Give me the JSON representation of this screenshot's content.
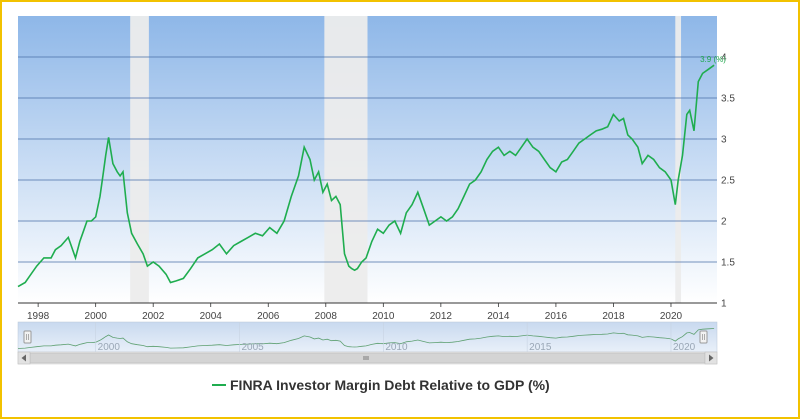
{
  "chart_data": {
    "type": "line",
    "title": "",
    "xlabel": "",
    "ylabel": "",
    "ylim": [
      1,
      4.5
    ],
    "xlim": [
      1997.3,
      2021.6
    ],
    "y_ticks": [
      "1",
      "1.5",
      "2",
      "2.5",
      "3",
      "3.5",
      "4"
    ],
    "x_ticks": [
      "1998",
      "2000",
      "2002",
      "2004",
      "2006",
      "2008",
      "2010",
      "2012",
      "2014",
      "2016",
      "2018",
      "2020"
    ],
    "navigator_ticks": [
      "2000",
      "2005",
      "2010",
      "2015",
      "2020"
    ],
    "recessions": [
      [
        2001.2,
        2001.85
      ],
      [
        2007.95,
        2009.45
      ],
      [
        2020.15,
        2020.35
      ]
    ],
    "last_value_label": "3.9 (%)",
    "legend": [
      "FINRA Investor Margin Debt Relative to GDP (%)"
    ],
    "series": [
      {
        "name": "FINRA Investor Margin Debt Relative to GDP (%)",
        "color": "#1fad4f",
        "x": [
          1997.3,
          1997.55,
          1997.75,
          1997.95,
          1998.2,
          1998.45,
          1998.6,
          1998.8,
          1999.05,
          1999.3,
          1999.45,
          1999.55,
          1999.7,
          1999.85,
          2000.0,
          2000.15,
          2000.25,
          2000.35,
          2000.45,
          2000.6,
          2000.75,
          2000.85,
          2000.95,
          2001.1,
          2001.25,
          2001.45,
          2001.65,
          2001.8,
          2002.0,
          2002.2,
          2002.45,
          2002.6,
          2002.8,
          2003.05,
          2003.3,
          2003.55,
          2003.8,
          2004.05,
          2004.3,
          2004.55,
          2004.8,
          2005.05,
          2005.3,
          2005.55,
          2005.8,
          2006.05,
          2006.3,
          2006.55,
          2006.8,
          2007.05,
          2007.25,
          2007.45,
          2007.6,
          2007.75,
          2007.9,
          2008.05,
          2008.2,
          2008.35,
          2008.5,
          2008.65,
          2008.8,
          2008.9,
          2009.0,
          2009.1,
          2009.25,
          2009.4,
          2009.6,
          2009.8,
          2010.0,
          2010.2,
          2010.4,
          2010.6,
          2010.8,
          2011.0,
          2011.2,
          2011.4,
          2011.6,
          2011.8,
          2012.0,
          2012.2,
          2012.4,
          2012.6,
          2012.8,
          2013.0,
          2013.2,
          2013.4,
          2013.6,
          2013.8,
          2014.0,
          2014.2,
          2014.4,
          2014.6,
          2014.8,
          2015.0,
          2015.2,
          2015.4,
          2015.6,
          2015.8,
          2016.0,
          2016.2,
          2016.4,
          2016.6,
          2016.8,
          2017.0,
          2017.2,
          2017.4,
          2017.6,
          2017.8,
          2018.0,
          2018.2,
          2018.35,
          2018.5,
          2018.65,
          2018.85,
          2019.0,
          2019.2,
          2019.4,
          2019.6,
          2019.8,
          2020.0,
          2020.15,
          2020.25,
          2020.4,
          2020.55,
          2020.65,
          2020.8,
          2020.95,
          2021.1,
          2021.3,
          2021.5
        ],
        "values": [
          1.2,
          1.25,
          1.35,
          1.45,
          1.55,
          1.55,
          1.65,
          1.7,
          1.8,
          1.55,
          1.75,
          1.85,
          2.0,
          2.0,
          2.05,
          2.3,
          2.55,
          2.8,
          3.02,
          2.7,
          2.6,
          2.55,
          2.6,
          2.1,
          1.85,
          1.72,
          1.6,
          1.45,
          1.5,
          1.45,
          1.35,
          1.25,
          1.27,
          1.3,
          1.42,
          1.55,
          1.6,
          1.65,
          1.72,
          1.6,
          1.7,
          1.75,
          1.8,
          1.85,
          1.82,
          1.92,
          1.85,
          2.0,
          2.3,
          2.55,
          2.9,
          2.75,
          2.5,
          2.6,
          2.35,
          2.45,
          2.25,
          2.3,
          2.2,
          1.6,
          1.45,
          1.42,
          1.4,
          1.42,
          1.5,
          1.55,
          1.75,
          1.9,
          1.85,
          1.95,
          2.0,
          1.85,
          2.1,
          2.2,
          2.35,
          2.15,
          1.95,
          2.0,
          2.05,
          2.0,
          2.05,
          2.15,
          2.3,
          2.45,
          2.5,
          2.6,
          2.75,
          2.85,
          2.9,
          2.8,
          2.85,
          2.8,
          2.9,
          3.0,
          2.9,
          2.85,
          2.75,
          2.65,
          2.6,
          2.72,
          2.75,
          2.85,
          2.95,
          3.0,
          3.05,
          3.1,
          3.12,
          3.15,
          3.3,
          3.22,
          3.25,
          3.05,
          3.0,
          2.9,
          2.7,
          2.8,
          2.75,
          2.65,
          2.6,
          2.5,
          2.2,
          2.5,
          2.8,
          3.3,
          3.35,
          3.1,
          3.7,
          3.8,
          3.85,
          3.9
        ]
      }
    ]
  }
}
